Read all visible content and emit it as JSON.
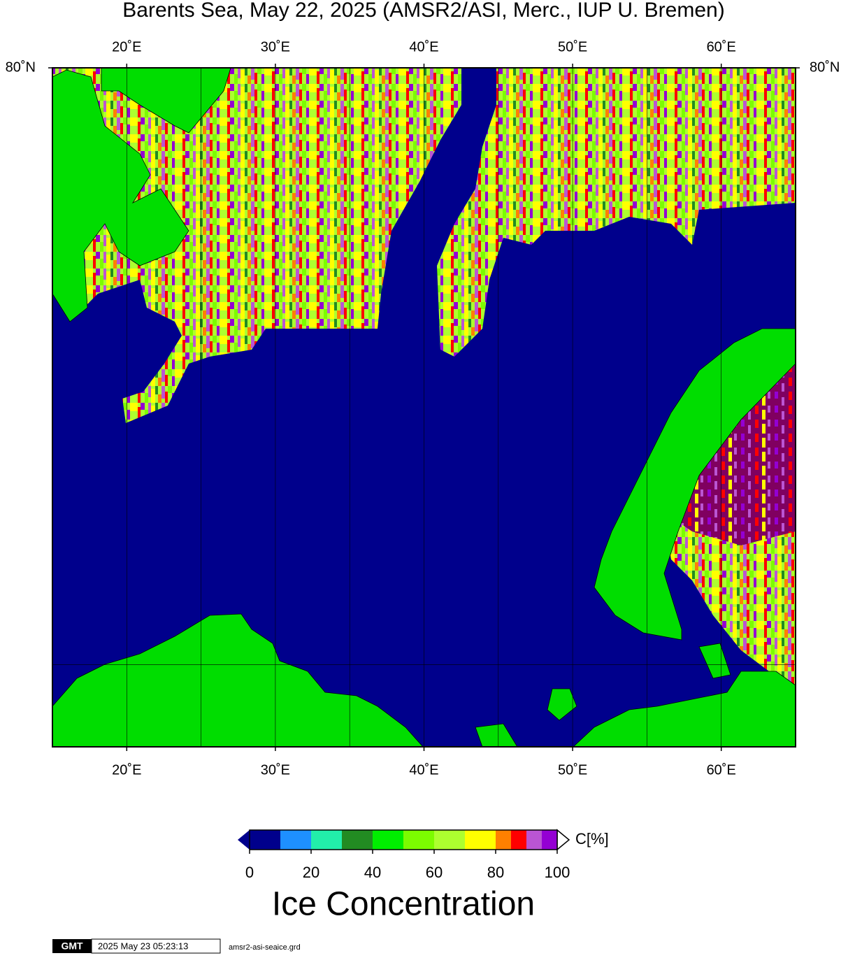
{
  "map": {
    "title": "Barents Sea, May 22, 2025 (AMSR2/ASI, Merc., IUP U. Bremen)",
    "lon_range": [
      15,
      65
    ],
    "lon_ticks": [
      {
        "value": 20,
        "label": "20˚E"
      },
      {
        "value": 30,
        "label": "30˚E"
      },
      {
        "value": 40,
        "label": "40˚E"
      },
      {
        "value": 50,
        "label": "50˚E"
      },
      {
        "value": 60,
        "label": "60˚E"
      }
    ],
    "lon_grid": [
      20,
      25,
      30,
      35,
      40,
      45,
      50,
      55,
      60
    ],
    "lat_ticks": [
      {
        "value": 80,
        "label": "80˚N"
      }
    ],
    "lat_grid": [
      70
    ]
  },
  "colorbar": {
    "bounds": [
      0,
      10,
      20,
      30,
      40,
      50,
      60,
      70,
      80,
      85,
      90,
      95,
      100
    ],
    "colors": [
      "#00008c",
      "#1e90ff",
      "#22eeaa",
      "#228b22",
      "#00ee00",
      "#7cfc00",
      "#adff2f",
      "#ffff00",
      "#ff8000",
      "#ff0000",
      "#ba55d3",
      "#9400d3"
    ],
    "ticks": [
      0,
      20,
      40,
      60,
      80,
      100
    ],
    "unit": "C[%]",
    "label": "Ice Concentration"
  },
  "footer": {
    "logo": "GMT",
    "timestamp": "2025 May 23 05:23:13",
    "file": "amsr2-asi-seaice.grd"
  }
}
